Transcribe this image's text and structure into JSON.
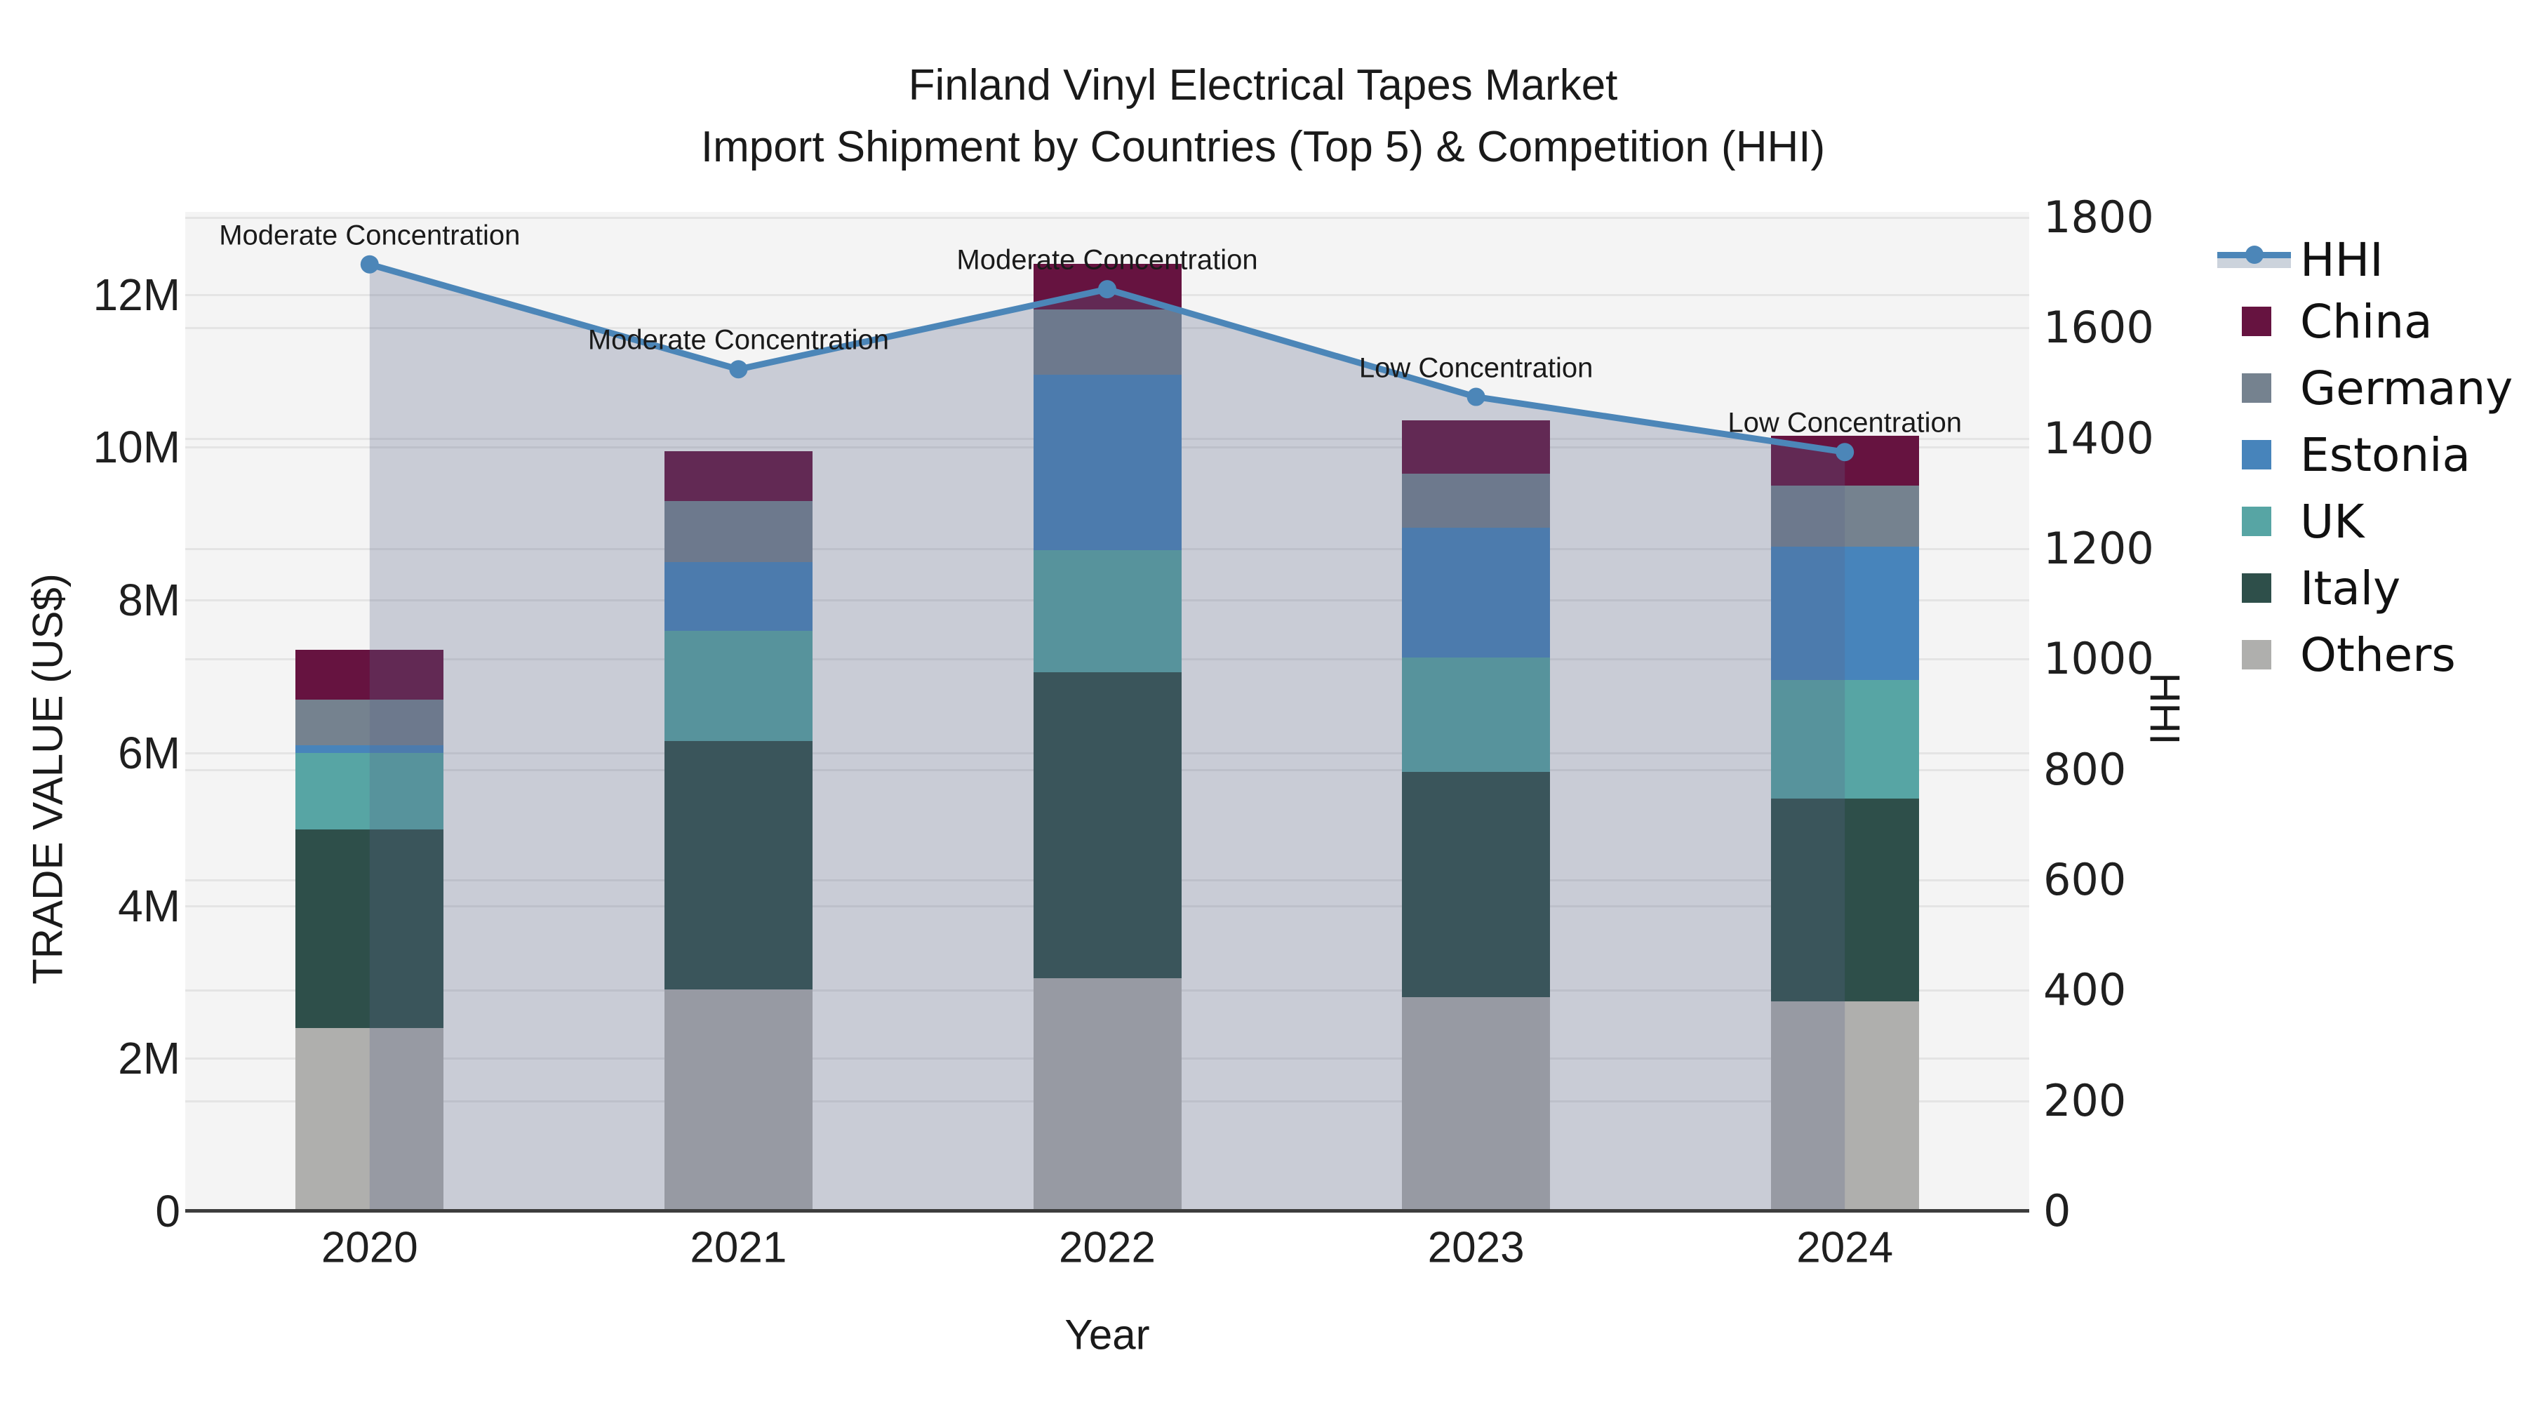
{
  "title": {
    "line1": "Finland Vinyl Electrical Tapes Market",
    "line2": "Import Shipment by Countries (Top 5) & Competition (HHI)"
  },
  "colors": {
    "plot_bg": "#f4f4f4",
    "grid": "#e4e4e4",
    "axis_line": "#3d3d3d",
    "text": "#1a1a1a",
    "hhi_line": "#4c86b8",
    "area_fill": "rgba(88,102,138,0.28)",
    "legend_fill_swatch": "#ccd3dc"
  },
  "chart_data": {
    "type": "stacked-bar+line",
    "categories": [
      "2020",
      "2021",
      "2022",
      "2023",
      "2024"
    ],
    "values_unit": "million US$",
    "bar_series": [
      {
        "name": "China",
        "color": "#661340",
        "values": [
          0.65,
          0.65,
          0.6,
          0.7,
          0.65
        ]
      },
      {
        "name": "Germany",
        "color": "#75828f",
        "values": [
          0.6,
          0.8,
          0.85,
          0.7,
          0.8
        ]
      },
      {
        "name": "Estonia",
        "color": "#4784bb",
        "values": [
          0.1,
          0.9,
          2.3,
          1.7,
          1.75
        ]
      },
      {
        "name": "UK",
        "color": "#57a5a4",
        "values": [
          1.0,
          1.45,
          1.6,
          1.5,
          1.55
        ]
      },
      {
        "name": "Italy",
        "color": "#2e4f4a",
        "values": [
          2.6,
          3.25,
          4.0,
          2.95,
          2.65
        ]
      },
      {
        "name": "Others",
        "color": "#afafad",
        "values": [
          2.4,
          2.9,
          3.05,
          2.8,
          2.75
        ]
      }
    ],
    "bar_totals": [
      7.35,
      9.95,
      12.4,
      10.35,
      10.15
    ],
    "stack_order_bottom_to_top": [
      "Others",
      "Italy",
      "UK",
      "Estonia",
      "Germany",
      "China"
    ],
    "line_series": {
      "name": "HHI",
      "color": "#4c86b8",
      "values": [
        1715,
        1525,
        1670,
        1475,
        1375
      ]
    },
    "annotations": [
      "Moderate Concentration",
      "Moderate Concentration",
      "Moderate Concentration",
      "Low Concentration",
      "Low Concentration"
    ],
    "axis_left": {
      "label": "TRADE VALUE (US$)",
      "ticks": [
        "0",
        "2M",
        "4M",
        "6M",
        "8M",
        "10M",
        "12M"
      ],
      "tick_values": [
        0,
        2,
        4,
        6,
        8,
        10,
        12
      ],
      "range": [
        0,
        13.08
      ]
    },
    "axis_right": {
      "label": "HHI",
      "ticks": [
        "0",
        "200",
        "400",
        "600",
        "800",
        "1000",
        "1200",
        "1400",
        "1600",
        "1800"
      ],
      "tick_values": [
        0,
        200,
        400,
        600,
        800,
        1000,
        1200,
        1400,
        1600,
        1800
      ],
      "range": [
        0,
        1810
      ]
    },
    "axis_x": {
      "label": "Year"
    },
    "grid": true,
    "legend_position": "right",
    "legend_order": [
      "HHI",
      "China",
      "Germany",
      "Estonia",
      "UK",
      "Italy",
      "Others"
    ]
  }
}
